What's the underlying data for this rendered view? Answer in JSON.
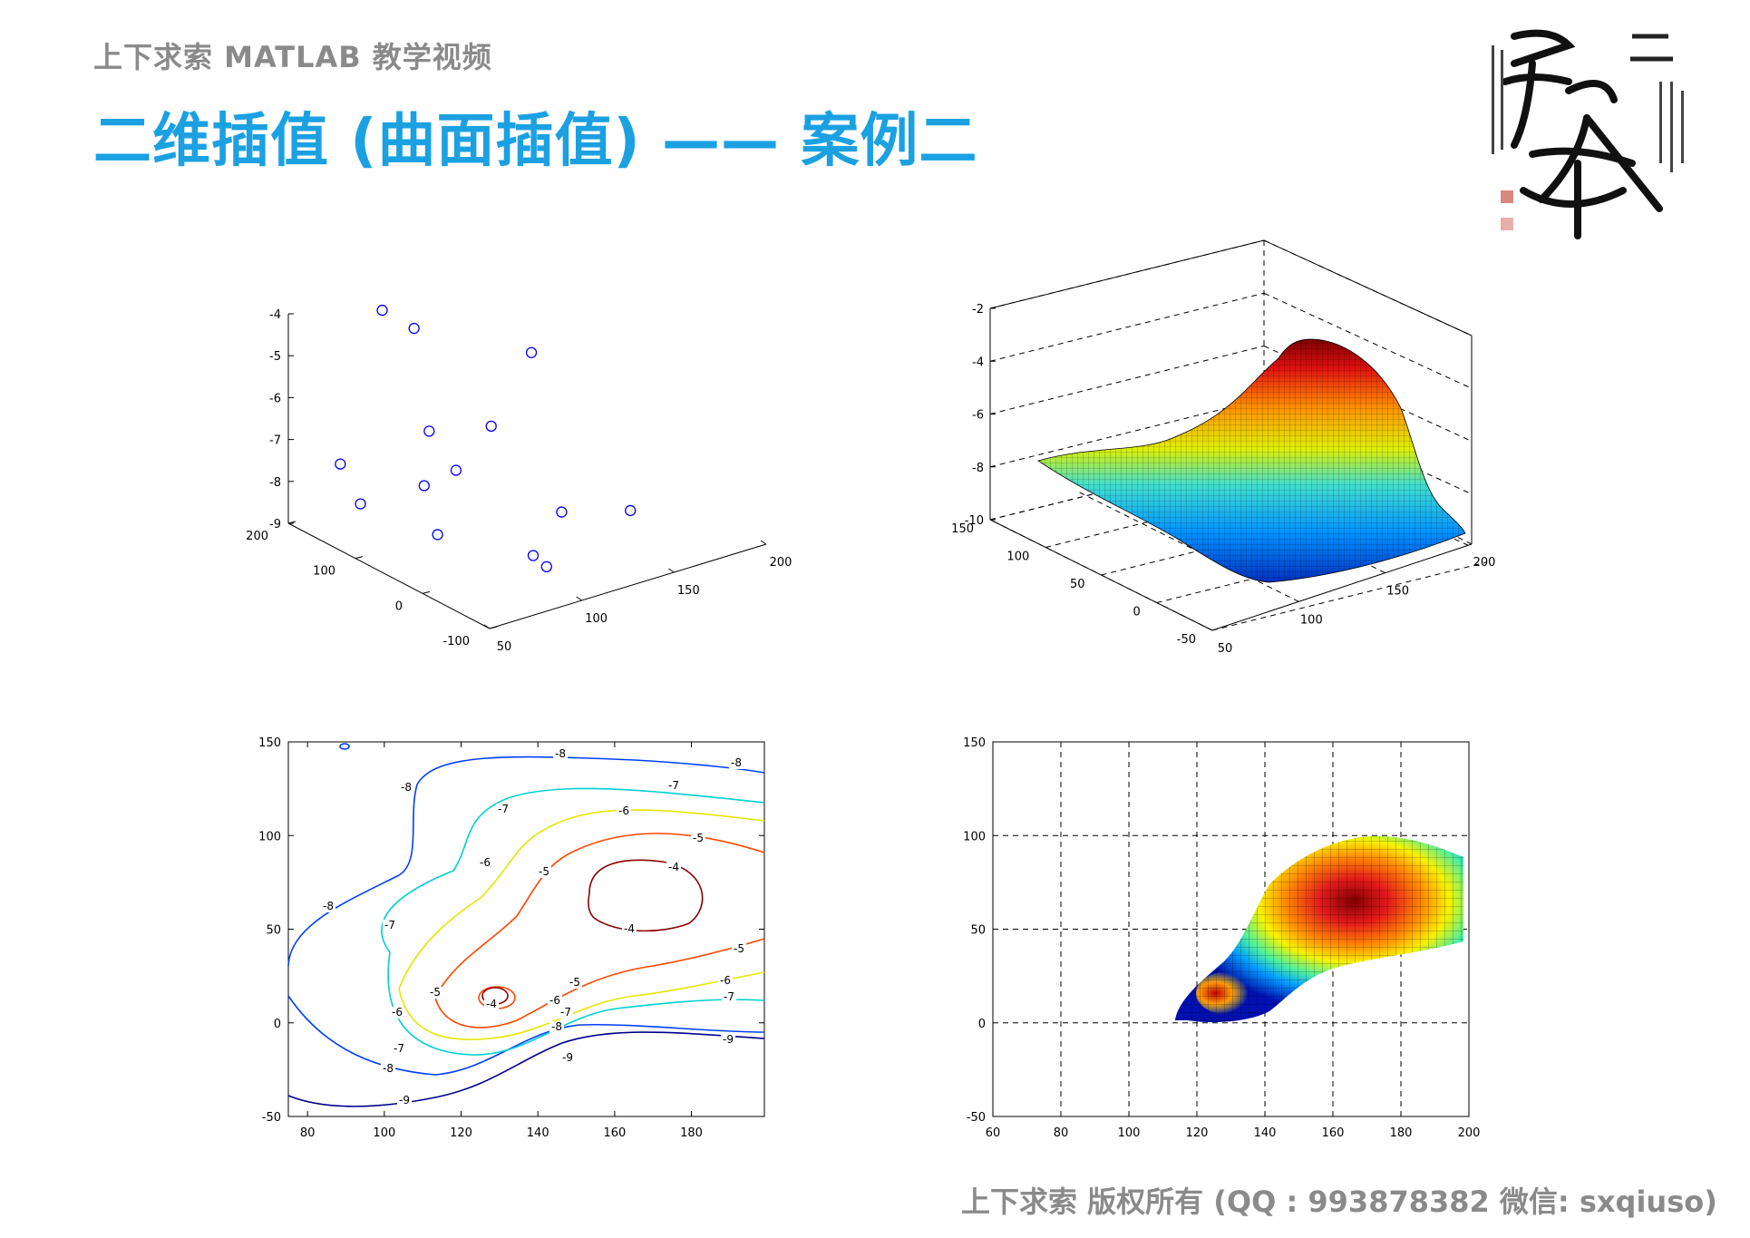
{
  "header": {
    "subtitle": "上下求索 MATLAB 教学视频",
    "title": "二维插值 (曲面插值) —— 案例二"
  },
  "footer": {
    "copyright": "上下求索 版权所有 (QQ : 993878382   微信: sxqiuso)"
  },
  "logo": {
    "name": "calligraphy-seal"
  },
  "colors": {
    "title": "#1ba1e2",
    "gray": "#8a8a8a",
    "marker": "#0000ff"
  },
  "chart_data": [
    {
      "type": "scatter",
      "projection": "3d",
      "xlim": [
        50,
        200
      ],
      "ylim": [
        -100,
        200
      ],
      "zlim": [
        -9,
        -4
      ],
      "x_ticks": [
        "50",
        "100",
        "150",
        "200"
      ],
      "y_ticks": [
        "-100",
        "0",
        "100",
        "200"
      ],
      "z_ticks": [
        "-4",
        "-5",
        "-6",
        "-7",
        "-8",
        "-9"
      ],
      "marker": "circle",
      "points": [
        {
          "x": 90,
          "y": 170,
          "z": -4.2
        },
        {
          "x": 100,
          "y": 150,
          "z": -4.6
        },
        {
          "x": 160,
          "y": 140,
          "z": -5.9
        },
        {
          "x": 90,
          "y": 100,
          "z": -6.5
        },
        {
          "x": 120,
          "y": 90,
          "z": -6.7
        },
        {
          "x": 90,
          "y": 60,
          "z": -7.1
        },
        {
          "x": 60,
          "y": 150,
          "z": -7.3
        },
        {
          "x": 80,
          "y": 80,
          "z": -7.5
        },
        {
          "x": 60,
          "y": 120,
          "z": -8.0
        },
        {
          "x": 80,
          "y": 60,
          "z": -8.5
        },
        {
          "x": 140,
          "y": 40,
          "z": -8.6
        },
        {
          "x": 170,
          "y": 20,
          "z": -8.8
        },
        {
          "x": 110,
          "y": 0,
          "z": -8.9
        },
        {
          "x": 110,
          "y": -20,
          "z": -9.0
        }
      ]
    },
    {
      "type": "surface",
      "projection": "3d",
      "xlim": [
        50,
        200
      ],
      "ylim": [
        -50,
        150
      ],
      "zlim": [
        -10,
        -2
      ],
      "x_ticks": [
        "50",
        "100",
        "150",
        "200"
      ],
      "y_ticks": [
        "-50",
        "0",
        "50",
        "100",
        "150"
      ],
      "z_ticks": [
        "-2",
        "-4",
        "-6",
        "-8",
        "-10"
      ],
      "grid": true,
      "colormap": "jet"
    },
    {
      "type": "contour",
      "xlim": [
        75,
        199
      ],
      "ylim": [
        -50,
        150
      ],
      "x_ticks": [
        "80",
        "100",
        "120",
        "140",
        "160",
        "180"
      ],
      "y_ticks": [
        "-50",
        "0",
        "50",
        "100",
        "150"
      ],
      "levels": [
        "-9",
        "-8",
        "-7",
        "-6",
        "-5",
        "-4"
      ],
      "colormap": "jet"
    },
    {
      "type": "heatmap",
      "xlim": [
        60,
        200
      ],
      "ylim": [
        -50,
        150
      ],
      "x_ticks": [
        "60",
        "80",
        "100",
        "120",
        "140",
        "160",
        "180",
        "200"
      ],
      "y_ticks": [
        "-50",
        "0",
        "50",
        "100",
        "150"
      ],
      "grid": true,
      "colormap": "jet"
    }
  ]
}
